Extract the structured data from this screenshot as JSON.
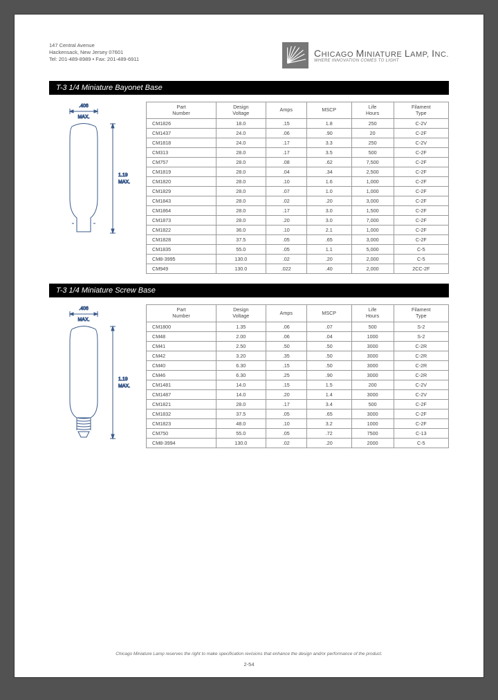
{
  "header": {
    "address_line1": "147 Central Avenue",
    "address_line2": "Hackensack, New Jersey 07601",
    "address_line3": "Tel: 201-489-8989 • Fax: 201-489-6911",
    "company_name_html": "CHICAGO MINIATURE LAMP, INC.",
    "tagline": "WHERE INNOVATION COMES TO LIGHT"
  },
  "columns": [
    "Part Number",
    "Design Voltage",
    "Amps",
    "MSCP",
    "Life Hours",
    "Filament Type"
  ],
  "section1": {
    "title": "T-3 1/4 Miniature Bayonet Base",
    "dim_width": ".406 MAX.",
    "dim_height": "1.19 MAX.",
    "rows": [
      [
        "CM1826",
        "18.0",
        ".15",
        "1.8",
        "250",
        "C-2V"
      ],
      [
        "CM1437",
        "24.0",
        ".06",
        ".90",
        "20",
        "C-2F"
      ],
      [
        "CM1818",
        "24.0",
        ".17",
        "3.3",
        "250",
        "C-2V"
      ],
      [
        "CM313",
        "28.0",
        ".17",
        "3.5",
        "500",
        "C-2F"
      ],
      [
        "CM757",
        "28.0",
        ".08",
        ".62",
        "7,500",
        "C-2F"
      ],
      [
        "CM1819",
        "28.0",
        ".04",
        ".34",
        "2,500",
        "C-2F"
      ],
      [
        "CM1820",
        "28.0",
        ".10",
        "1.6",
        "1,000",
        "C-2F"
      ],
      [
        "CM1829",
        "28.0",
        ".07",
        "1.0",
        "1,000",
        "C-2F"
      ],
      [
        "CM1843",
        "28.0",
        ".02",
        ".20",
        "3,000",
        "C-2F"
      ],
      [
        "CM1864",
        "28.0",
        ".17",
        "3.0",
        "1,500",
        "C-2F"
      ],
      [
        "CM1873",
        "28.0",
        ".20",
        "3.0",
        "7,000",
        "C-2F"
      ],
      [
        "CM1822",
        "36.0",
        ".10",
        "2.1",
        "1,000",
        "C-2F"
      ],
      [
        "CM1828",
        "37.5",
        ".05",
        ".65",
        "3,000",
        "C-2F"
      ],
      [
        "CM1835",
        "55.0",
        ".05",
        "1.1",
        "5,000",
        "C-5"
      ],
      [
        "CM8-3995",
        "130.0",
        ".02",
        ".20",
        "2,000",
        "C-5"
      ],
      [
        "CM949",
        "130.0",
        ".022",
        ".40",
        "2,000",
        "2CC-2F"
      ]
    ]
  },
  "section2": {
    "title": "T-3 1/4 Miniature Screw Base",
    "dim_width": ".406 MAX.",
    "dim_height": "1.19 MAX.",
    "rows": [
      [
        "CM1800",
        "1.35",
        ".06",
        ".07",
        "500",
        "S-2"
      ],
      [
        "CM48",
        "2.00",
        ".06",
        ".04",
        "1000",
        "S-2"
      ],
      [
        "CM41",
        "2.50",
        ".50",
        ".50",
        "3000",
        "C-2R"
      ],
      [
        "CM42",
        "3.20",
        ".35",
        ".50",
        "3000",
        "C-2R"
      ],
      [
        "CM40",
        "6.30",
        ".15",
        ".50",
        "3000",
        "C-2R"
      ],
      [
        "CM46",
        "6.30",
        ".25",
        ".90",
        "3000",
        "C-2R"
      ],
      [
        "CM1481",
        "14.0",
        ".15",
        "1.5",
        "200",
        "C-2V"
      ],
      [
        "CM1487",
        "14.0",
        ".20",
        "1.4",
        "3000",
        "C-2V"
      ],
      [
        "CM1821",
        "28.0",
        ".17",
        "3.4",
        "500",
        "C-2F"
      ],
      [
        "CM1832",
        "37.5",
        ".05",
        ".65",
        "3000",
        "C-2F"
      ],
      [
        "CM1823",
        "48.0",
        ".10",
        "3.2",
        "1000",
        "C-2F"
      ],
      [
        "CM750",
        "55.0",
        ".05",
        ".72",
        "7500",
        "C-13"
      ],
      [
        "CM8-3994",
        "130.0",
        ".02",
        ".20",
        "2000",
        "C-5"
      ]
    ]
  },
  "footer_text": "Chicago Miniature Lamp reserves the right to make specification revisions that enhance the design and/or performance of the product.",
  "page_number": "2-54",
  "colors": {
    "bar_bg": "#000000",
    "bar_fg": "#ffffff",
    "line": "#3a5a8a",
    "border": "#999999"
  }
}
